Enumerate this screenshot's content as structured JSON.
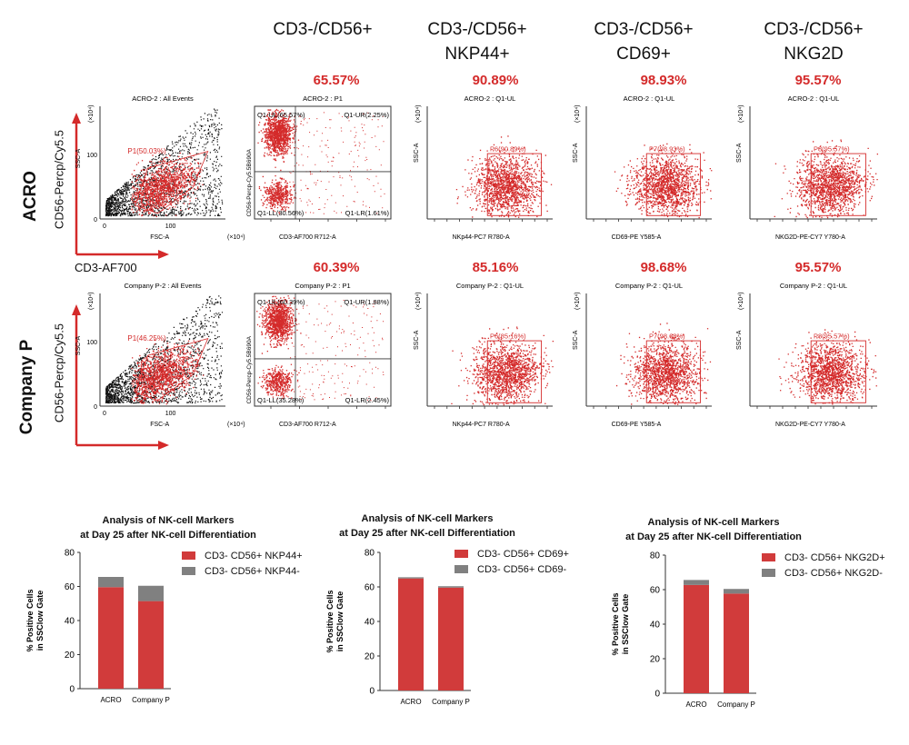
{
  "columns": [
    {
      "line1": "CD3-/CD56+",
      "line2": ""
    },
    {
      "line1": "CD3-/CD56+",
      "line2": "NKP44+"
    },
    {
      "line1": "CD3-/CD56+",
      "line2": "CD69+"
    },
    {
      "line1": "CD3-/CD56+",
      "line2": "NKG2D"
    }
  ],
  "rows": [
    {
      "label": "ACRO",
      "ylabel": "CD56-Percp/Cy5.5",
      "xlabel": "CD3-AF700",
      "percents": [
        "65.57%",
        "90.89%",
        "98.93%",
        "95.57%"
      ],
      "plot_titles": [
        "ACRO-2 : All Events",
        "ACRO-2 : P1",
        "ACRO-2 : Q1-UL",
        "ACRO-2 : Q1-UL",
        "ACRO-2 : Q1-UL"
      ],
      "gate": "P1(50.03%)",
      "quadrants": [
        "Q1-UL(65.57%)",
        "Q1-UR(2.25%)",
        "Q1-LL(30.56%)",
        "Q1-LR(1.61%)"
      ],
      "gates": [
        "P6(90.89%)",
        "P7(98.93%)",
        "P8(95.57%)"
      ]
    },
    {
      "label": "Company P",
      "ylabel": "CD56-Percp/Cy5.5",
      "xlabel": "",
      "percents": [
        "60.39%",
        "85.16%",
        "98.68%",
        "95.57%"
      ],
      "plot_titles": [
        "Company P-2 : All Events",
        "Company P-2 : P1",
        "Company P-2 : Q1-UL",
        "Company P-2 : Q1-UL",
        "Company P-2 : Q1-UL"
      ],
      "gate": "P1(46.25%)",
      "quadrants": [
        "Q1-UL(60.39%)",
        "Q1-UR(1.88%)",
        "Q1-LL(35.28%)",
        "Q1-LR(2.45%)"
      ],
      "gates": [
        "P6(85.16%)",
        "P7(98.68%)",
        "P8(95.57%)"
      ]
    }
  ],
  "axes": {
    "fsc_x": "FSC-A",
    "ssc_y": "SSC-A",
    "quad_y": "CD56-Percp-Cy5.5B690A",
    "quad_x": "CD3-AF700 R712-A",
    "x_labels": [
      "NKp44-PC7 R780-A",
      "CD69-PE Y585-A",
      "NKG2D-PE-CY7 Y780-A"
    ],
    "x1e4": "(×10⁴)",
    "t0": "0",
    "t100": "100"
  },
  "chart_data": [
    {
      "type": "bar",
      "stacked": true,
      "title": "Analysis of NK-cell Markers at Day 25 after NK-cell Differentiation",
      "title_lines": [
        "Analysis of NK-cell Markers",
        "at Day 25 after NK-cell Differentiation"
      ],
      "categories": [
        "ACRO",
        "Company P"
      ],
      "ylabel": "% Positive Cells in SSClow Gate",
      "ylabel_lines": [
        "% Positive Cells",
        "in SSClow Gate"
      ],
      "ylim": [
        0,
        80
      ],
      "yticks": [
        0,
        20,
        40,
        60,
        80
      ],
      "series": [
        {
          "name": "CD3- CD56+ NKP44+",
          "values": [
            59.6,
            51.4
          ],
          "color": "#d13b3b"
        },
        {
          "name": "CD3- CD56+ NKP44-",
          "values": [
            6.0,
            9.0
          ],
          "color": "#808080"
        }
      ]
    },
    {
      "type": "bar",
      "stacked": true,
      "title": "Analysis of NK-cell Markers at Day 25 after NK-cell Differentiation",
      "title_lines": [
        "Analysis of NK-cell Markers",
        "at Day 25 after NK-cell Differentiation"
      ],
      "categories": [
        "ACRO",
        "Company P"
      ],
      "ylabel": "% Positive Cells in SSClow Gate",
      "ylabel_lines": [
        "% Positive Cells",
        "in SSClow Gate"
      ],
      "ylim": [
        0,
        80
      ],
      "yticks": [
        0,
        20,
        40,
        60,
        80
      ],
      "series": [
        {
          "name": "CD3- CD56+ CD69+",
          "values": [
            64.9,
            59.6
          ],
          "color": "#d13b3b"
        },
        {
          "name": "CD3- CD56+ CD69-",
          "values": [
            0.7,
            0.8
          ],
          "color": "#808080"
        }
      ]
    },
    {
      "type": "bar",
      "stacked": true,
      "title": "Analysis of NK-cell Markers at Day 25 after NK-cell Differentiation",
      "title_lines": [
        "Analysis of NK-cell Markers",
        "at Day 25 after NK-cell Differentiation"
      ],
      "categories": [
        "ACRO",
        "Company P"
      ],
      "ylabel": "% Positive Cells in SSClow Gate",
      "ylabel_lines": [
        "% Positive Cells",
        "in SSClow Gate"
      ],
      "ylim": [
        0,
        80
      ],
      "yticks": [
        0,
        20,
        40,
        60,
        80
      ],
      "series": [
        {
          "name": "CD3- CD56+ NKG2D+",
          "values": [
            62.7,
            57.7
          ],
          "color": "#d13b3b"
        },
        {
          "name": "CD3- CD56+ NKG2D-",
          "values": [
            2.9,
            2.7
          ],
          "color": "#808080"
        }
      ]
    }
  ]
}
